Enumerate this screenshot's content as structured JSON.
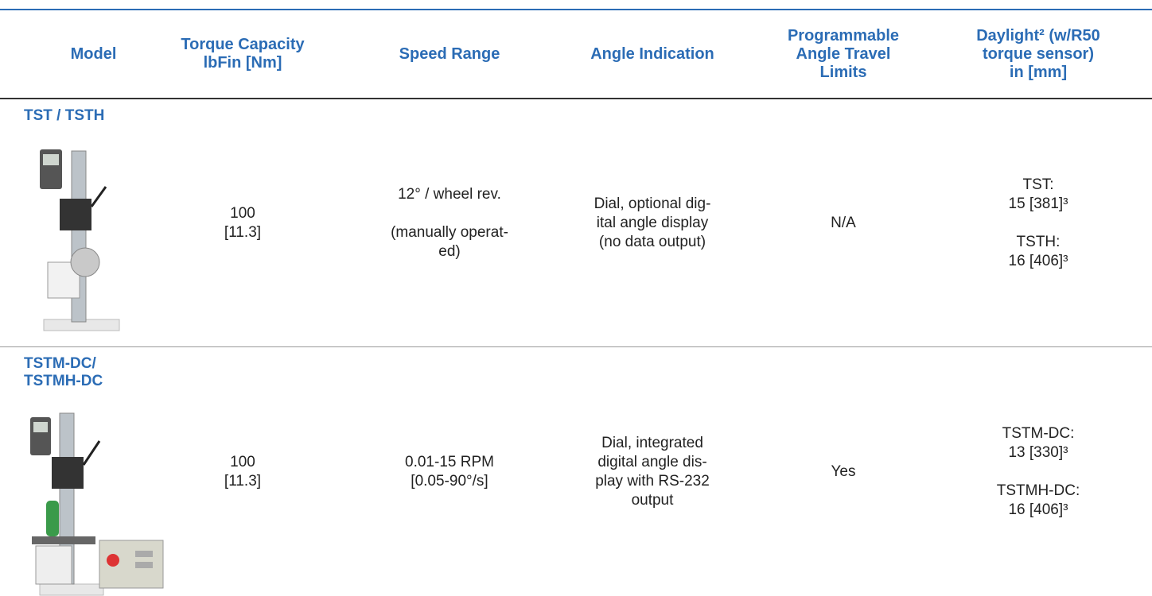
{
  "header": {
    "columns": [
      [
        "Model"
      ],
      [
        "Torque Capacity",
        "lbFin [Nm]"
      ],
      [
        "Speed Range"
      ],
      [
        "Angle Indication"
      ],
      [
        "Programmable",
        "Angle Travel",
        "Limits"
      ],
      [
        "Daylight² (w/R50",
        "torque sensor)",
        "in [mm]"
      ]
    ]
  },
  "table": {
    "rows": [
      {
        "model": [
          "TST / TSTH"
        ],
        "cells": [
          [
            [
              "100",
              "[11.3]"
            ]
          ],
          [
            [
              "12° / wheel rev."
            ],
            [
              "(manually operat-",
              "ed)"
            ]
          ],
          [
            [
              "Dial, optional dig-",
              "ital angle display",
              "(no data output)"
            ]
          ],
          [
            [
              "N/A"
            ]
          ],
          [
            [
              "TST:",
              "15 [381]³"
            ],
            [
              "TSTH:",
              "16 [406]³"
            ]
          ]
        ]
      },
      {
        "model": [
          "TSTM-DC/",
          "TSTMH-DC"
        ],
        "cells": [
          [
            [
              "100",
              "[11.3]"
            ]
          ],
          [
            [
              "0.01-15 RPM",
              "[0.05-90°/s]"
            ]
          ],
          [
            [
              "Dial, integrated",
              "digital angle dis-",
              "play with RS-232",
              "output"
            ]
          ],
          [
            [
              "Yes"
            ]
          ],
          [
            [
              "TSTM-DC:",
              "13 [330]³"
            ],
            [
              "TSTMH-DC:",
              "16 [406]³"
            ]
          ]
        ]
      }
    ]
  }
}
